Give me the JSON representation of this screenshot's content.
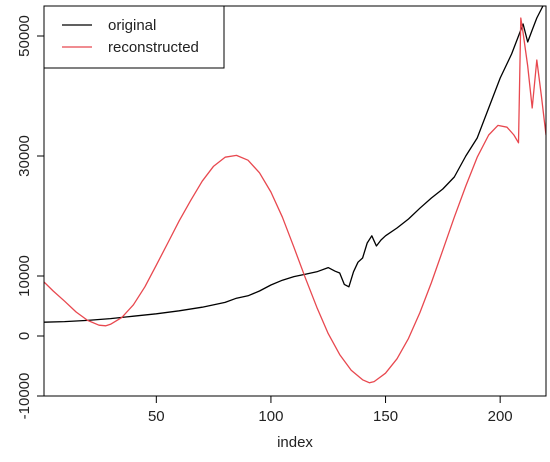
{
  "chart_data": {
    "type": "line",
    "title": "",
    "xlabel": "index",
    "ylabel": "",
    "xlim": [
      1,
      220
    ],
    "ylim": [
      -10000,
      55000
    ],
    "x_ticks": [
      50,
      100,
      150,
      200
    ],
    "y_ticks": [
      -10000,
      0,
      10000,
      30000,
      50000
    ],
    "grid": false,
    "legend_position": "top-left",
    "series": [
      {
        "name": "original",
        "color": "#000000",
        "x": [
          1,
          10,
          20,
          30,
          40,
          50,
          60,
          70,
          80,
          85,
          90,
          95,
          100,
          105,
          110,
          115,
          120,
          125,
          128,
          130,
          132,
          134,
          136,
          138,
          140,
          142,
          144,
          146,
          148,
          150,
          155,
          160,
          165,
          170,
          175,
          180,
          185,
          190,
          195,
          200,
          205,
          210,
          212,
          214,
          216,
          218,
          220
        ],
        "y": [
          2300,
          2400,
          2600,
          2900,
          3300,
          3700,
          4200,
          4800,
          5600,
          6300,
          6700,
          7500,
          8500,
          9300,
          9900,
          10300,
          10700,
          11400,
          10800,
          10500,
          8600,
          8200,
          10700,
          12300,
          13000,
          15500,
          16700,
          15000,
          16000,
          16700,
          18000,
          19500,
          21300,
          23000,
          24500,
          26500,
          30000,
          33000,
          38000,
          43000,
          47000,
          52000,
          49000,
          51000,
          53000,
          54500,
          56000
        ]
      },
      {
        "name": "reconstructed",
        "color": "#e8484f",
        "x": [
          1,
          5,
          10,
          15,
          20,
          25,
          28,
          30,
          35,
          40,
          45,
          50,
          55,
          60,
          65,
          70,
          75,
          80,
          85,
          90,
          95,
          100,
          105,
          110,
          115,
          120,
          125,
          130,
          135,
          140,
          143,
          145,
          150,
          155,
          160,
          165,
          170,
          175,
          180,
          185,
          190,
          195,
          199,
          203,
          206,
          208,
          209,
          210,
          212,
          214,
          216,
          218,
          220
        ],
        "y": [
          9000,
          7500,
          5800,
          4000,
          2600,
          1800,
          1700,
          1950,
          3100,
          5200,
          8200,
          11800,
          15500,
          19200,
          22600,
          25800,
          28300,
          29800,
          30100,
          29300,
          27200,
          24000,
          19800,
          14800,
          9700,
          4800,
          400,
          -3100,
          -5700,
          -7300,
          -7800,
          -7600,
          -6200,
          -3800,
          -400,
          3900,
          8900,
          14300,
          19800,
          25000,
          29800,
          33500,
          35100,
          34800,
          33500,
          32200,
          53000,
          50500,
          45000,
          38000,
          46000,
          40000,
          33500
        ]
      }
    ]
  }
}
